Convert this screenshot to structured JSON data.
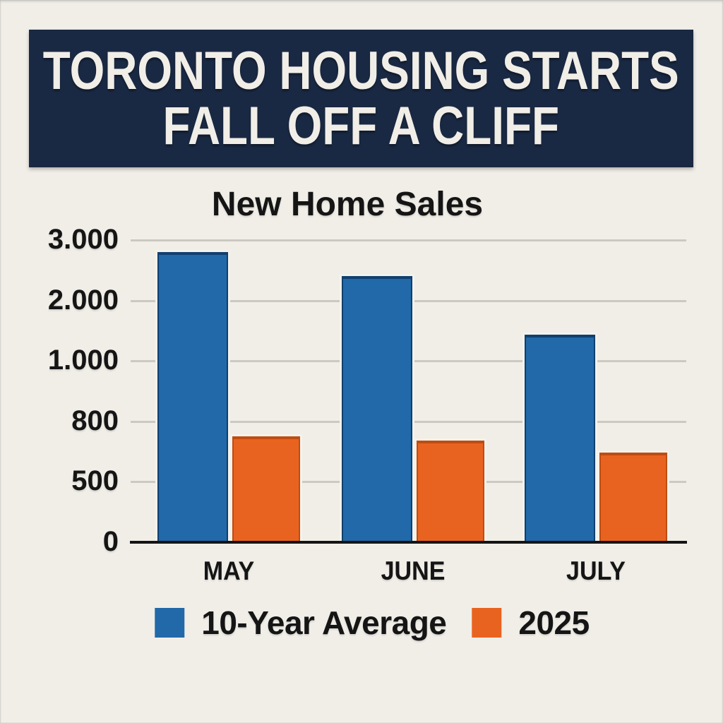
{
  "banner": {
    "line1": "TORONTO HOUSING STARTS",
    "line2": "FALL OFF A CLIFF",
    "background": "#1a2943",
    "text_color": "#f1eee8"
  },
  "chart_data": {
    "type": "bar",
    "title": "New Home Sales",
    "categories": [
      "MAY",
      "JUNE",
      "JULY"
    ],
    "series": [
      {
        "name": "10-Year Average",
        "color": "#2169a9",
        "edge_color": "#10406e",
        "values": [
          2800,
          2400,
          1440
        ]
      },
      {
        "name": "2025",
        "color": "#e96320",
        "edge_color": "#bf4c10",
        "values": [
          725,
          705,
          645
        ]
      }
    ],
    "y_ticks": [
      {
        "label": "0",
        "value": 0
      },
      {
        "label": "500",
        "value": 500
      },
      {
        "label": "800",
        "value": 800
      },
      {
        "label": "1.000",
        "value": 1000
      },
      {
        "label": "2.000",
        "value": 2000
      },
      {
        "label": "3.000",
        "value": 3000
      }
    ],
    "ylim": [
      0,
      3000
    ],
    "grid": true,
    "legend_position": "bottom",
    "axis_note": "y-axis tick marks evenly spaced (non-linear scale as drawn)"
  },
  "colors": {
    "page_background": "#f1eee8",
    "gridline": "#ccc9c2",
    "axis_line": "#141414",
    "text": "#151515",
    "bar_outline": "#f4f2ec"
  }
}
